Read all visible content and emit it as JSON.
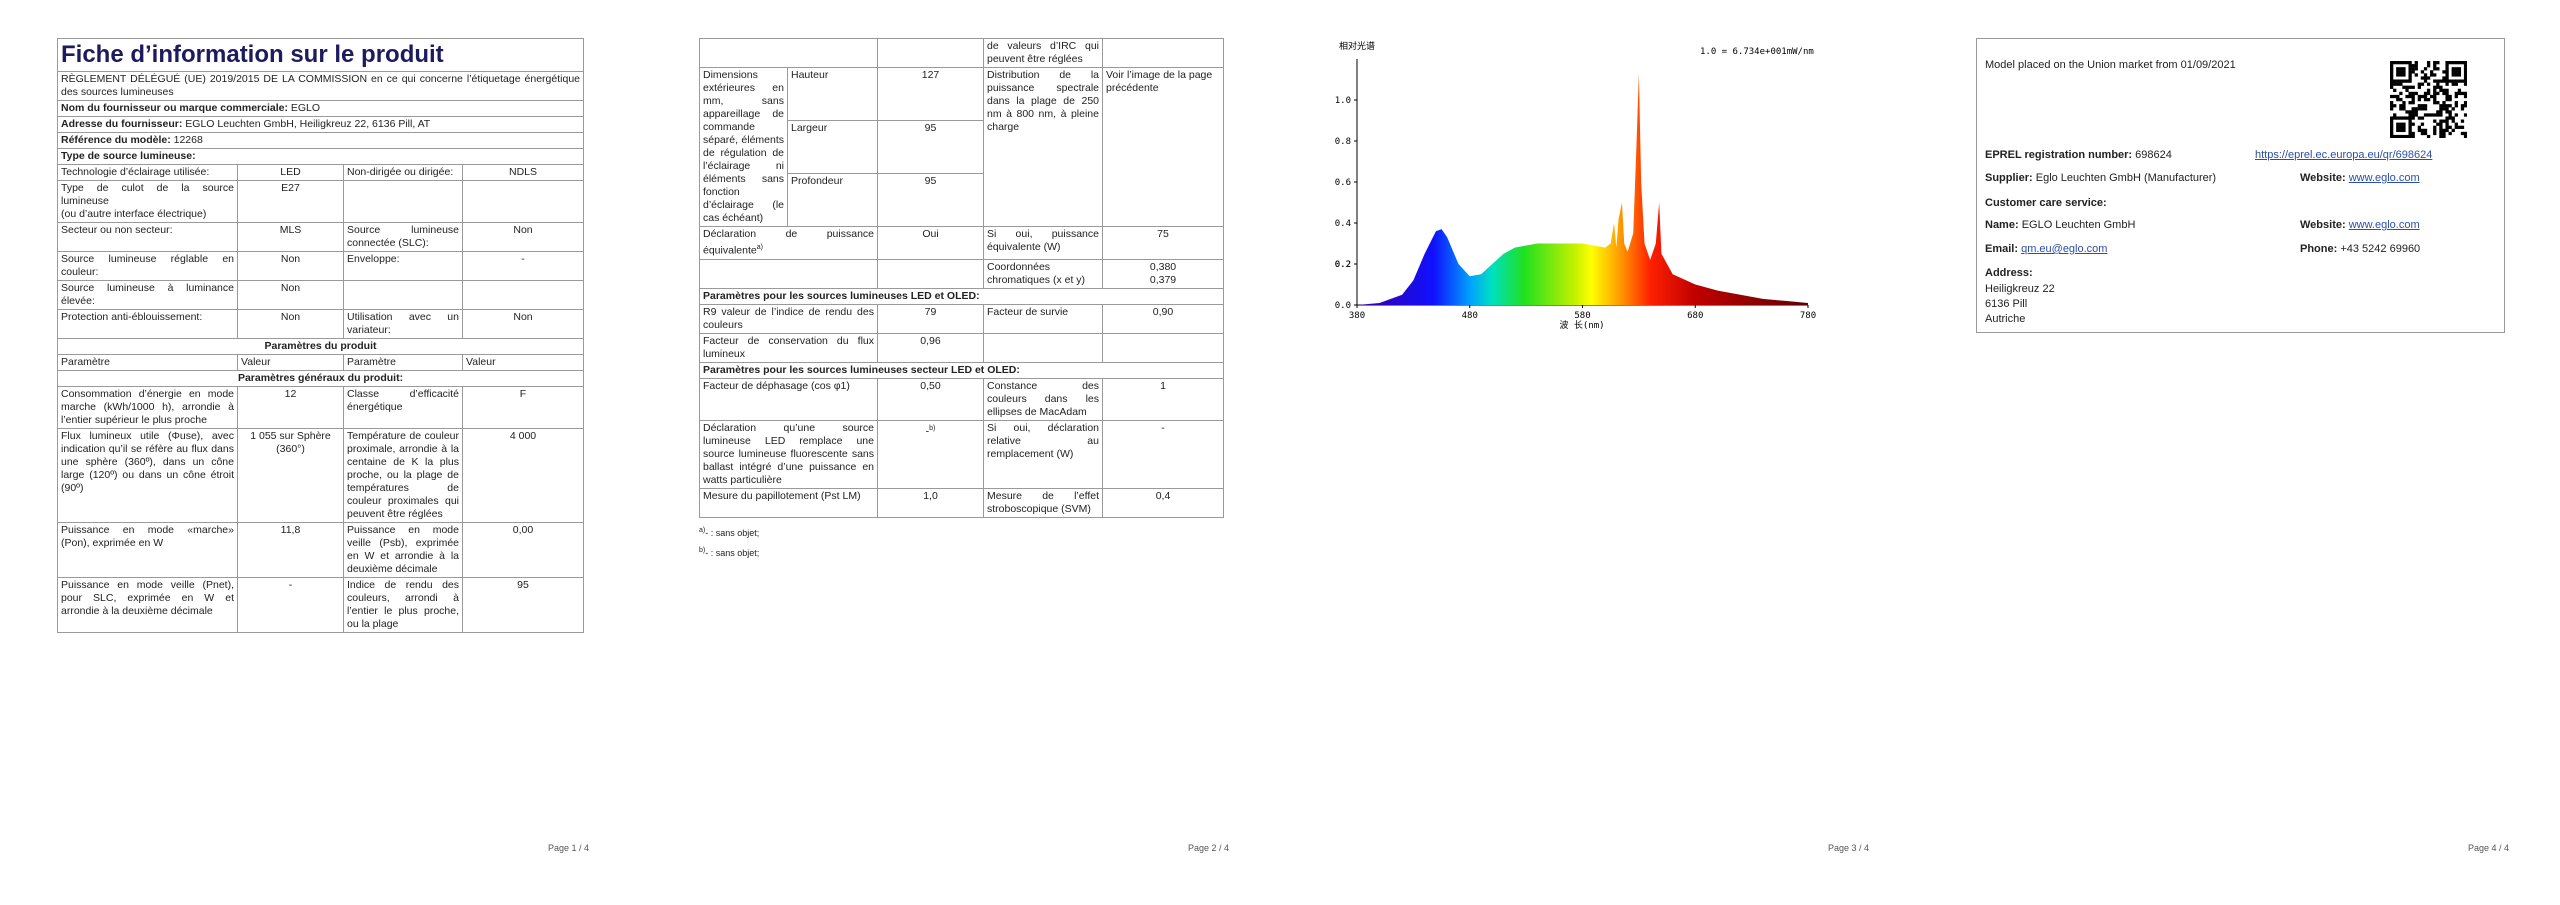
{
  "page1": {
    "title": "Fiche d’information sur le produit",
    "regulation": "RÈGLEMENT DÉLÉGUÉ (UE) 2019/2015 DE LA COMMISSION en ce qui concerne l’étiquetage énergétique des sources lumineuses",
    "supplier": {
      "label": "Nom du fournisseur ou marque commerciale:",
      "value": "EGLO"
    },
    "address": {
      "label": "Adresse du fournisseur:",
      "value": "EGLO Leuchten GmbH, Heiligkreuz 22, 6136 Pill, AT"
    },
    "model": {
      "label": "Référence du modèle:",
      "value": "12268"
    },
    "source_type": "Type de source lumineuse:",
    "rows1": [
      [
        "Technologie d’éclairage utilisée:",
        "LED",
        "Non-dirigée ou dirigée:",
        "NDLS"
      ],
      [
        "Type de culot de la source lumineuse\n(ou d’autre interface électrique)",
        "E27",
        null,
        null
      ],
      [
        "Secteur ou non secteur:",
        "MLS",
        "Source lumineuse connectée (SLC):",
        "Non"
      ],
      [
        "Source lumineuse réglable en couleur:",
        "Non",
        "Enveloppe:",
        "-"
      ],
      [
        "Source lumineuse à luminance élevée:",
        "Non",
        null,
        null
      ],
      [
        "Protection anti-éblouissement:",
        "Non",
        "Utilisation avec un variateur:",
        "Non"
      ]
    ],
    "section_product": "Paramètres du produit",
    "header": [
      "Paramètre",
      "Valeur",
      "Paramètre",
      "Valeur"
    ],
    "section_general": "Paramètres généraux du produit:",
    "rows2": [
      [
        "Consommation d’énergie en mode marche (kWh/1000 h), arrondie à l’entier supérieur le plus proche",
        "12",
        "Classe d’efficacité énergétique",
        "F"
      ],
      [
        "Flux lumineux utile (Φuse), avec indication qu’il se réfère au flux dans une sphère (360º), dans un cône large (120º) ou dans un cône étroit (90º)",
        "1 055 sur Sphère (360°)",
        "Température de couleur proximale, arrondie à la centaine de K la plus proche, ou la plage de températures de couleur proximales qui peuvent être réglées",
        "4 000"
      ],
      [
        "Puissance en mode «marche» (Pon), exprimée en W",
        "11,8",
        "Puissance en mode veille (Psb), exprimée en W et arrondie à la deuxième décimale",
        "0,00"
      ],
      [
        "Puissance en mode veille (Pnet), pour SLC, exprimée en W et arrondie à la deuxième décimale",
        "-",
        "Indice de rendu des couleurs, arrondi à l’entier le plus proche, ou la plage",
        "95"
      ]
    ],
    "footer": "Page 1 / 4"
  },
  "page2": {
    "continuation": "de valeurs d’IRC qui peuvent être réglées",
    "dimensions": {
      "label": "Dimensions extérieures en mm, sans appareillage de commande séparé, éléments de régulation de l’éclairage ni éléments sans fonction d’éclairage (le cas échéant)",
      "dims": [
        {
          "name": "Hauteur",
          "value": "127"
        },
        {
          "name": "Largeur",
          "value": "95"
        },
        {
          "name": "Profondeur",
          "value": "95"
        }
      ],
      "spectral_label": "Distribution de la puissance spectrale dans la plage de 250 nm à 800 nm, à pleine charge",
      "spectral_value": "Voir l’image de la page précédente"
    },
    "rows_a": [
      [
        {
          "text": "Déclaration de puissance équivalente",
          "sup": "a)"
        },
        "Oui",
        "Si oui, puissance équivalente (W)",
        "75"
      ],
      [
        null,
        null,
        "Coordonnées chromatiques (x et y)",
        "0,380\n0,379"
      ]
    ],
    "section_led": "Paramètres pour les sources lumineuses LED et OLED:",
    "rows_b": [
      [
        "R9 valeur de l’indice de rendu des couleurs",
        "79",
        "Facteur de survie",
        "0,90"
      ],
      [
        "Facteur de conservation du flux lumineux",
        "0,96",
        null,
        null
      ]
    ],
    "section_mains": "Paramètres pour les sources lumineuses secteur LED et OLED:",
    "rows_c": [
      [
        "Facteur de déphasage (cos φ1)",
        "0,50",
        "Constance des couleurs dans les ellipses de MacAdam",
        "1"
      ],
      [
        "Déclaration qu’une source lumineuse LED remplace une source lumineuse fluorescente sans ballast intégré d’une puissance en watts particulière",
        {
          "text": "-",
          "sup": "b)"
        },
        "Si oui, déclaration relative au remplacement (W)",
        "-"
      ],
      [
        "Mesure du papillotement (Pst LM)",
        "1,0",
        "Mesure de l’effet stroboscopique (SVM)",
        "0,4"
      ]
    ],
    "footnotes": [
      {
        "mark": "a)",
        "text": "- : sans objet;"
      },
      {
        "mark": "b)",
        "text": "- : sans objet;"
      }
    ],
    "footer": "Page 2 / 4"
  },
  "page3": {
    "spectrum": {
      "type": "area",
      "title": "相对光谱",
      "annotation": "1.0 = 6.734e+001mW/nm",
      "xlabel": "波 长(nm)",
      "x": [
        380,
        400,
        420,
        430,
        440,
        450,
        455,
        460,
        470,
        480,
        490,
        500,
        510,
        520,
        540,
        560,
        580,
        590,
        600,
        605,
        608,
        610,
        612,
        615,
        617,
        620,
        625,
        628,
        630,
        632,
        635,
        640,
        645,
        648,
        650,
        660,
        680,
        700,
        720,
        740,
        760,
        780
      ],
      "values": [
        0,
        0.01,
        0.05,
        0.12,
        0.25,
        0.36,
        0.37,
        0.33,
        0.2,
        0.14,
        0.15,
        0.2,
        0.25,
        0.28,
        0.3,
        0.3,
        0.3,
        0.29,
        0.28,
        0.3,
        0.4,
        0.28,
        0.42,
        0.5,
        0.3,
        0.26,
        0.35,
        0.8,
        1.13,
        0.6,
        0.3,
        0.22,
        0.3,
        0.5,
        0.25,
        0.15,
        0.1,
        0.07,
        0.05,
        0.03,
        0.02,
        0.01
      ],
      "xlim": [
        380,
        780
      ],
      "xticks": [
        380,
        480,
        580,
        680,
        780
      ],
      "ylim": [
        0,
        1.2
      ],
      "yticks": [
        {
          "value": 0,
          "label": "0.0"
        },
        0.2,
        0.4,
        0.6,
        0.8,
        {
          "value": 1,
          "label": "1.0"
        },
        0.2
      ]
    },
    "footer": "Page 3 / 4"
  },
  "page4": {
    "placed": "Model placed on the Union market from 01/09/2021",
    "eprel": {
      "label": "EPREL registration number:",
      "value": "698624",
      "link": "https://eprel.ec.europa.eu/qr/698624"
    },
    "supplier": {
      "label": "Supplier:",
      "value": "Eglo Leuchten GmbH (Manufacturer)"
    },
    "website1": {
      "label": "Website:",
      "value": "www.eglo.com"
    },
    "customer_care": "Customer care service:",
    "name": {
      "label": "Name:",
      "value": "EGLO Leuchten GmbH"
    },
    "website2": {
      "label": "Website:",
      "value": "www.eglo.com"
    },
    "email": {
      "label": "Email:",
      "value": "qm.eu@eglo.com"
    },
    "phone": {
      "label": "Phone:",
      "value": "+43 5242 69960"
    },
    "address": {
      "label": "Address:",
      "lines": [
        "Heiligkreuz 22",
        "6136 Pill",
        "Autriche"
      ]
    },
    "footer": "Page 4 / 4"
  }
}
